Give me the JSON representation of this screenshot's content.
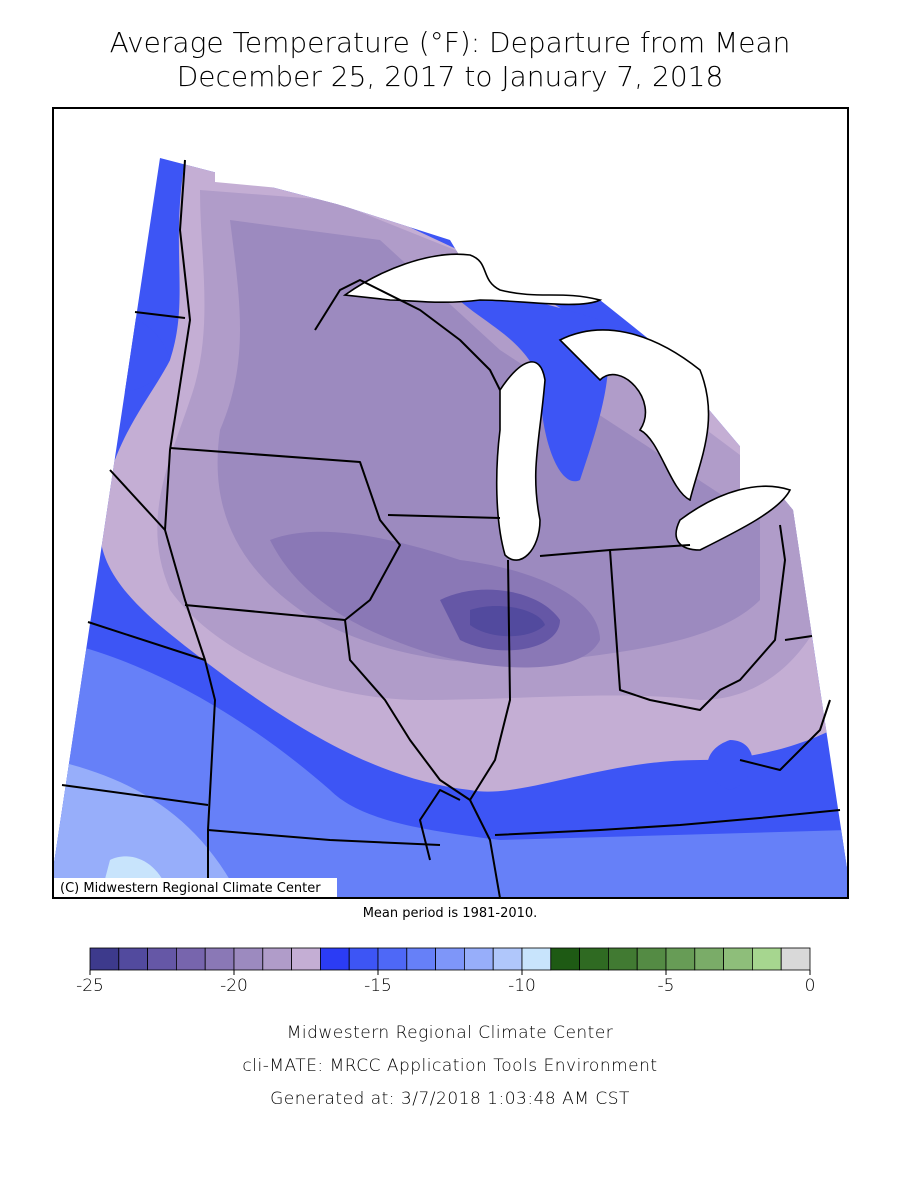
{
  "title": "Average Temperature (°F): Departure from Mean",
  "subtitle": "December 25, 2017 to January 7, 2018",
  "map": {
    "credit": "(C) Midwestern Regional Climate Center",
    "note": "Mean period is 1981-2010."
  },
  "legend": {
    "bins": [
      -25,
      -24,
      -23,
      -22,
      -21,
      -20,
      -19,
      -18,
      -17,
      -16,
      -15,
      -14,
      -13,
      -12,
      -11,
      -10,
      -9,
      -8,
      -7,
      -6,
      -5,
      -4,
      -3,
      -2,
      -1,
      0
    ],
    "colors": [
      "#3d3a8c",
      "#524a9e",
      "#6557a6",
      "#7765ad",
      "#8a78b6",
      "#9c8abf",
      "#b09cc9",
      "#c4aed4",
      "#2b3cf5",
      "#3d55f5",
      "#4e68f7",
      "#6680f8",
      "#7e96f9",
      "#97aefa",
      "#b0c7fb",
      "#c8e4fc",
      "#1e5a14",
      "#2f6a22",
      "#417a32",
      "#548b44",
      "#679c56",
      "#7aac68",
      "#8ebe7a",
      "#a6d68f",
      "#d9d9d9"
    ],
    "lim": [
      -25,
      0
    ],
    "ticks": [
      -25,
      -20,
      -15,
      -10,
      -5,
      0
    ]
  },
  "footer": [
    "Midwestern Regional Climate Center",
    "cli-MATE: MRCC Application Tools Environment",
    "Generated at: 3/7/2018 1:03:48 AM CST"
  ]
}
